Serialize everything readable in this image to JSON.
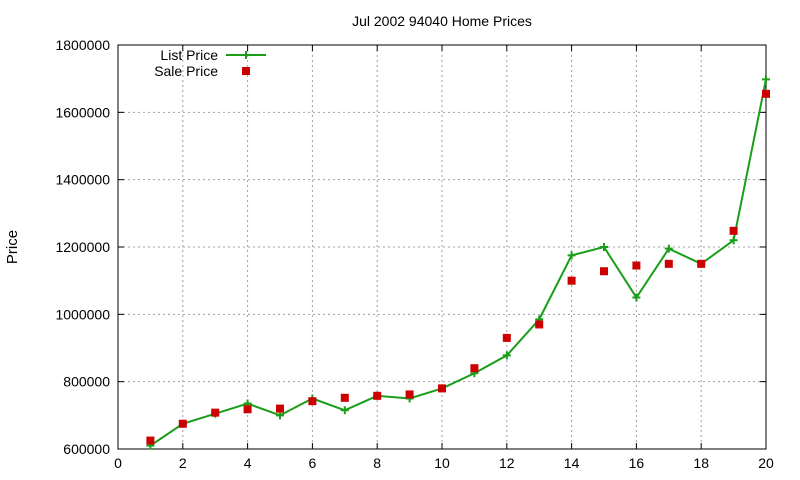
{
  "chart_data": {
    "type": "line",
    "title": "Jul 2002 94040 Home Prices",
    "xlabel": "",
    "ylabel": "Price",
    "xlim": [
      0,
      20
    ],
    "ylim": [
      600000,
      1800000
    ],
    "xticks": [
      0,
      2,
      4,
      6,
      8,
      10,
      12,
      14,
      16,
      18,
      20
    ],
    "yticks": [
      600000,
      800000,
      1000000,
      1200000,
      1400000,
      1600000,
      1800000
    ],
    "grid": true,
    "legend_position": "top-left",
    "series": [
      {
        "name": "List Price",
        "style": "lines-points",
        "color": "#1a9e1a",
        "marker": "plus",
        "x": [
          1,
          2,
          3,
          4,
          5,
          6,
          7,
          8,
          9,
          10,
          11,
          12,
          13,
          14,
          15,
          16,
          17,
          18,
          19,
          20
        ],
        "y": [
          610000,
          675000,
          705000,
          735000,
          700000,
          750000,
          715000,
          758000,
          750000,
          780000,
          825000,
          878000,
          985000,
          1175000,
          1200000,
          1050000,
          1195000,
          1150000,
          1220000,
          1698000
        ]
      },
      {
        "name": "Sale Price",
        "style": "points",
        "color": "#cc0000",
        "marker": "square",
        "x": [
          1,
          2,
          3,
          4,
          5,
          6,
          7,
          8,
          9,
          10,
          11,
          12,
          13,
          14,
          15,
          16,
          17,
          18,
          19,
          20
        ],
        "y": [
          625000,
          675000,
          708000,
          718000,
          720000,
          742000,
          752000,
          758000,
          762000,
          780000,
          840000,
          930000,
          970000,
          1100000,
          1128000,
          1145000,
          1150000,
          1150000,
          1248000,
          1655000
        ]
      }
    ]
  }
}
